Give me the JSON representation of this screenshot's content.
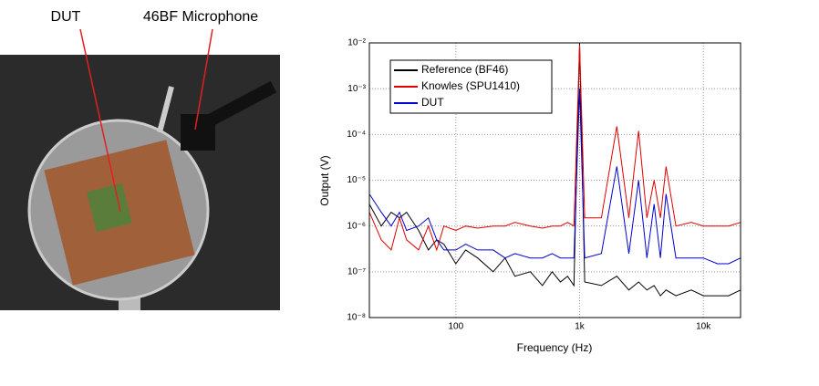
{
  "chart_data": {
    "type": "line",
    "annotations": [
      "DUT",
      "46BF Microphone"
    ],
    "xlabel": "Frequency (Hz)",
    "ylabel": "Output (V)",
    "log_x": true,
    "log_y": true,
    "grid": true,
    "legend": "upper left",
    "xlim": [
      20,
      20000
    ],
    "ylim": [
      1e-08,
      0.01
    ],
    "xticks": [
      100,
      {
        "value": 1000,
        "label": "1k"
      },
      {
        "value": 10000,
        "label": "10k"
      }
    ],
    "yticks": [
      {
        "value": 1e-08,
        "label": "10⁻⁸"
      },
      {
        "value": 1e-07,
        "label": "10⁻⁷"
      },
      {
        "value": 1e-06,
        "label": "10⁻⁶"
      },
      {
        "value": 1e-05,
        "label": "10⁻⁵"
      },
      {
        "value": 0.0001,
        "label": "10⁻⁴"
      },
      {
        "value": 0.001,
        "label": "10⁻³"
      },
      {
        "value": 0.01,
        "label": "10⁻²"
      }
    ],
    "x": [
      20,
      25,
      30,
      35,
      40,
      50,
      60,
      70,
      80,
      100,
      120,
      150,
      200,
      250,
      300,
      400,
      500,
      600,
      700,
      800,
      900,
      1000,
      1100,
      1500,
      2000,
      2500,
      3000,
      3500,
      4000,
      4500,
      5000,
      6000,
      8000,
      10000,
      13000,
      16000,
      20000
    ],
    "series": [
      {
        "name": "Reference (BF46)",
        "color": "#000000",
        "values": [
          3e-06,
          1e-06,
          2e-06,
          1.5e-06,
          2e-06,
          8e-07,
          3e-07,
          5e-07,
          4e-07,
          1.5e-07,
          3e-07,
          2e-07,
          1e-07,
          2e-07,
          8e-08,
          1e-07,
          5e-08,
          1e-07,
          6e-08,
          8e-08,
          5e-08,
          0.01,
          6e-08,
          5e-08,
          8e-08,
          4e-08,
          6e-08,
          4e-08,
          5e-08,
          3e-08,
          4e-08,
          3e-08,
          4e-08,
          3e-08,
          3e-08,
          3e-08,
          4e-08
        ]
      },
      {
        "name": "Knowles (SPU1410)",
        "color": "#e00000",
        "values": [
          2e-06,
          5e-07,
          3e-07,
          1.5e-06,
          5e-07,
          3e-07,
          1e-06,
          3e-07,
          1e-06,
          8e-07,
          1e-06,
          9e-07,
          1e-06,
          1e-06,
          1.2e-06,
          1e-06,
          9e-07,
          1e-06,
          1e-06,
          1.2e-06,
          1e-06,
          0.009,
          1.5e-06,
          1.5e-06,
          0.00015,
          1.5e-06,
          0.00012,
          1.5e-06,
          1e-05,
          1.5e-06,
          2e-05,
          1e-06,
          1.2e-06,
          1e-06,
          1e-06,
          1e-06,
          1.2e-06
        ]
      },
      {
        "name": "DUT",
        "color": "#0000d0",
        "values": [
          5e-06,
          2e-06,
          1e-06,
          2e-06,
          8e-07,
          1e-06,
          1.5e-06,
          5e-07,
          3e-07,
          3e-07,
          4e-07,
          3e-07,
          3e-07,
          2e-07,
          2.5e-07,
          2e-07,
          2e-07,
          2.5e-07,
          2e-07,
          2e-07,
          2e-07,
          0.001,
          2e-07,
          2.5e-07,
          2e-05,
          2.5e-07,
          1e-05,
          2e-07,
          3e-06,
          2e-07,
          5e-06,
          2e-07,
          2e-07,
          2e-07,
          1.5e-07,
          1.5e-07,
          2e-07
        ]
      }
    ]
  }
}
